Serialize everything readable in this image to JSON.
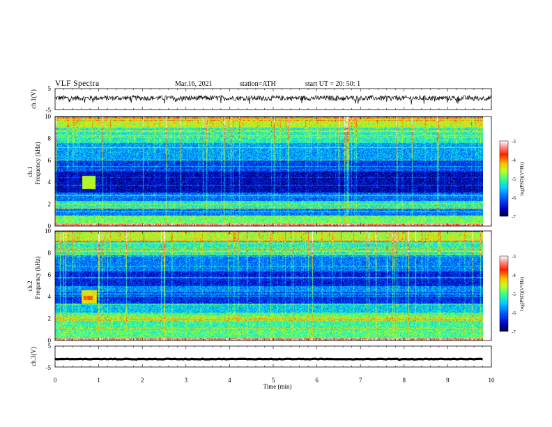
{
  "header": {
    "title": "VLF  Spectra",
    "date": "Mar.16, 2021",
    "station": "station=ATH",
    "start": "start  UT  =    20: 50: 1"
  },
  "axes": {
    "xlabel": "Time  (min)",
    "ch1_waveform_label": "ch.1(V)",
    "ch2_waveform_label": "ch.3(V)",
    "spec1_label_line1": "ch.1",
    "spec2_label_line1": "ch.2",
    "spec_label_line2": "Frequency  (kHz)",
    "colorbar_label": "log(PSD)(V²/Hz)"
  },
  "colors": {
    "colormap": [
      "#00005a",
      "#0000c8",
      "#0060ff",
      "#00c8ff",
      "#40ffb0",
      "#a0ff30",
      "#ffe000",
      "#ff8000",
      "#ff0000",
      "#ffb0b0",
      "#ffffff"
    ],
    "waveform": "#000000"
  },
  "chart_data": [
    {
      "type": "line",
      "name_label": "ch.1(V)",
      "x_range": [
        0,
        10
      ],
      "ylim": [
        -5,
        5
      ],
      "yticks": [
        "5",
        "-5"
      ],
      "mean_value": 0.5,
      "noise_amplitude": 1.2
    },
    {
      "type": "heatmap",
      "panel": "ch.1",
      "ylabel": "Frequency  (kHz)",
      "x_range": [
        0,
        10
      ],
      "data_x_max": 9.8,
      "ylim": [
        0,
        10
      ],
      "yticks": [
        "10",
        "8",
        "6",
        "4",
        "2",
        "0"
      ],
      "colorbar": {
        "range": [
          -7,
          -3
        ],
        "ticks": [
          "-3",
          "-4",
          "-5",
          "-6",
          "-7"
        ]
      },
      "bands": [
        {
          "f": [
            0,
            0.2
          ],
          "v": -3.4
        },
        {
          "f": [
            0.2,
            1.0
          ],
          "v": -4.9
        },
        {
          "f": [
            1.0,
            1.6
          ],
          "v": -5.9
        },
        {
          "f": [
            1.6,
            2.3
          ],
          "v": -5.2
        },
        {
          "f": [
            2.3,
            3.1
          ],
          "v": -6.0
        },
        {
          "f": [
            3.1,
            5.0
          ],
          "v": -6.6
        },
        {
          "f": [
            5.0,
            6.0
          ],
          "v": -6.2
        },
        {
          "f": [
            6.0,
            7.6
          ],
          "v": -5.7
        },
        {
          "f": [
            7.6,
            9.0
          ],
          "v": -5.2
        },
        {
          "f": [
            9.0,
            10.0
          ],
          "v": -4.6
        }
      ],
      "events": [
        {
          "t": [
            0.62,
            0.92
          ],
          "f": [
            3.4,
            4.6
          ],
          "v": -4.6
        }
      ]
    },
    {
      "type": "heatmap",
      "panel": "ch.2",
      "ylabel": "Frequency  (kHz)",
      "x_range": [
        0,
        10
      ],
      "data_x_max": 9.8,
      "ylim": [
        0,
        10
      ],
      "yticks": [
        "10",
        "8",
        "6",
        "4",
        "2",
        "0"
      ],
      "colorbar": {
        "range": [
          -7,
          -3
        ],
        "ticks": [
          "-3",
          "-4",
          "-5",
          "-6",
          "-7"
        ]
      },
      "bands": [
        {
          "f": [
            0,
            0.2
          ],
          "v": -3.4
        },
        {
          "f": [
            0.2,
            1.0
          ],
          "v": -5.0
        },
        {
          "f": [
            1.0,
            2.6
          ],
          "v": -5.1
        },
        {
          "f": [
            2.6,
            3.4
          ],
          "v": -5.5
        },
        {
          "f": [
            3.4,
            4.4
          ],
          "v": -6.3
        },
        {
          "f": [
            4.4,
            5.0
          ],
          "v": -5.8
        },
        {
          "f": [
            5.0,
            6.4
          ],
          "v": -6.4
        },
        {
          "f": [
            6.4,
            7.8
          ],
          "v": -5.9
        },
        {
          "f": [
            7.8,
            9.0
          ],
          "v": -5.2
        },
        {
          "f": [
            9.0,
            10.0
          ],
          "v": -4.6
        }
      ],
      "events": [
        {
          "t": [
            0.6,
            0.95
          ],
          "f": [
            3.4,
            4.6
          ],
          "v": -4.4
        },
        {
          "t": [
            0.65,
            0.85
          ],
          "f": [
            3.7,
            4.1
          ],
          "v": -3.9
        }
      ]
    },
    {
      "type": "line",
      "name_label": "ch.3(V)",
      "x_range": [
        0,
        10
      ],
      "data_x_max": 9.8,
      "ylim": [
        -5,
        5
      ],
      "yticks": [
        "5",
        "-5"
      ],
      "mean_value": -1.2,
      "noise_amplitude": 0.15
    }
  ],
  "xaxis": {
    "ticks": [
      "0",
      "1",
      "2",
      "3",
      "4",
      "5",
      "6",
      "7",
      "8",
      "9",
      "10"
    ]
  }
}
